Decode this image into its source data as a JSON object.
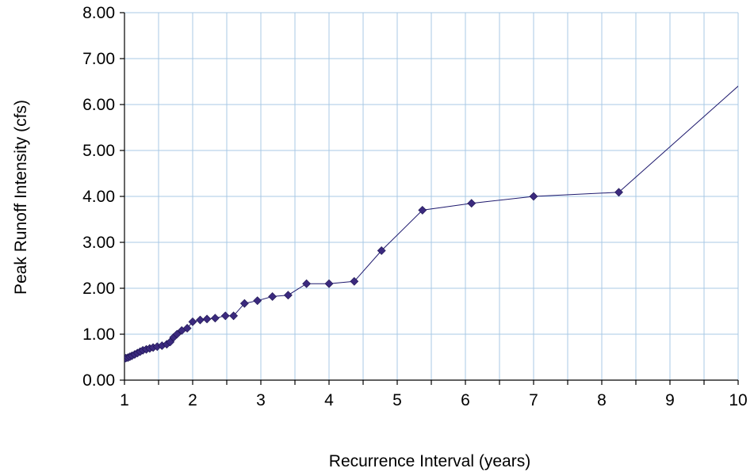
{
  "chart_data": {
    "type": "line",
    "title": "",
    "xlabel": "Recurrence Interval (years)",
    "ylabel": "Peak Runoff Intensity (cfs)",
    "xlim": [
      1,
      10
    ],
    "ylim": [
      0,
      8
    ],
    "x_minor_step": 0.5,
    "x_ticks": [
      1,
      2,
      3,
      4,
      5,
      6,
      7,
      8,
      9,
      10
    ],
    "x_tick_labels": [
      "1",
      "2",
      "3",
      "4",
      "5",
      "6",
      "7",
      "8",
      "9",
      "10"
    ],
    "y_ticks": [
      0,
      1,
      2,
      3,
      4,
      5,
      6,
      7,
      8
    ],
    "y_tick_labels": [
      "0.00",
      "1.00",
      "2.00",
      "3.00",
      "4.00",
      "5.00",
      "6.00",
      "7.00",
      "8.00"
    ],
    "grid": true,
    "legend": "none",
    "colors": {
      "line": "#1f1a6e",
      "marker": "#3b2a7e",
      "grid": "#a9c9e6",
      "axis": "#000000"
    },
    "series": [
      {
        "marker": "diamond",
        "x": [
          1.0,
          1.02,
          1.05,
          1.08,
          1.11,
          1.15,
          1.19,
          1.23,
          1.27,
          1.32,
          1.37,
          1.42,
          1.48,
          1.55,
          1.62,
          1.67,
          1.72,
          1.77,
          1.84,
          1.92,
          2.0,
          2.11,
          2.21,
          2.33,
          2.48,
          2.6,
          2.76,
          2.95,
          3.17,
          3.4,
          3.67,
          4.0,
          4.37,
          4.77,
          5.37,
          6.09,
          7.0,
          8.25,
          10.0
        ],
        "y": [
          0.47,
          0.48,
          0.49,
          0.51,
          0.53,
          0.56,
          0.59,
          0.62,
          0.65,
          0.67,
          0.69,
          0.71,
          0.73,
          0.75,
          0.78,
          0.83,
          0.93,
          1.0,
          1.08,
          1.13,
          1.27,
          1.31,
          1.33,
          1.35,
          1.4,
          1.4,
          1.67,
          1.73,
          1.82,
          1.85,
          2.1,
          2.1,
          2.15,
          2.82,
          3.7,
          3.85,
          4.0,
          4.09,
          6.4
        ]
      }
    ]
  }
}
